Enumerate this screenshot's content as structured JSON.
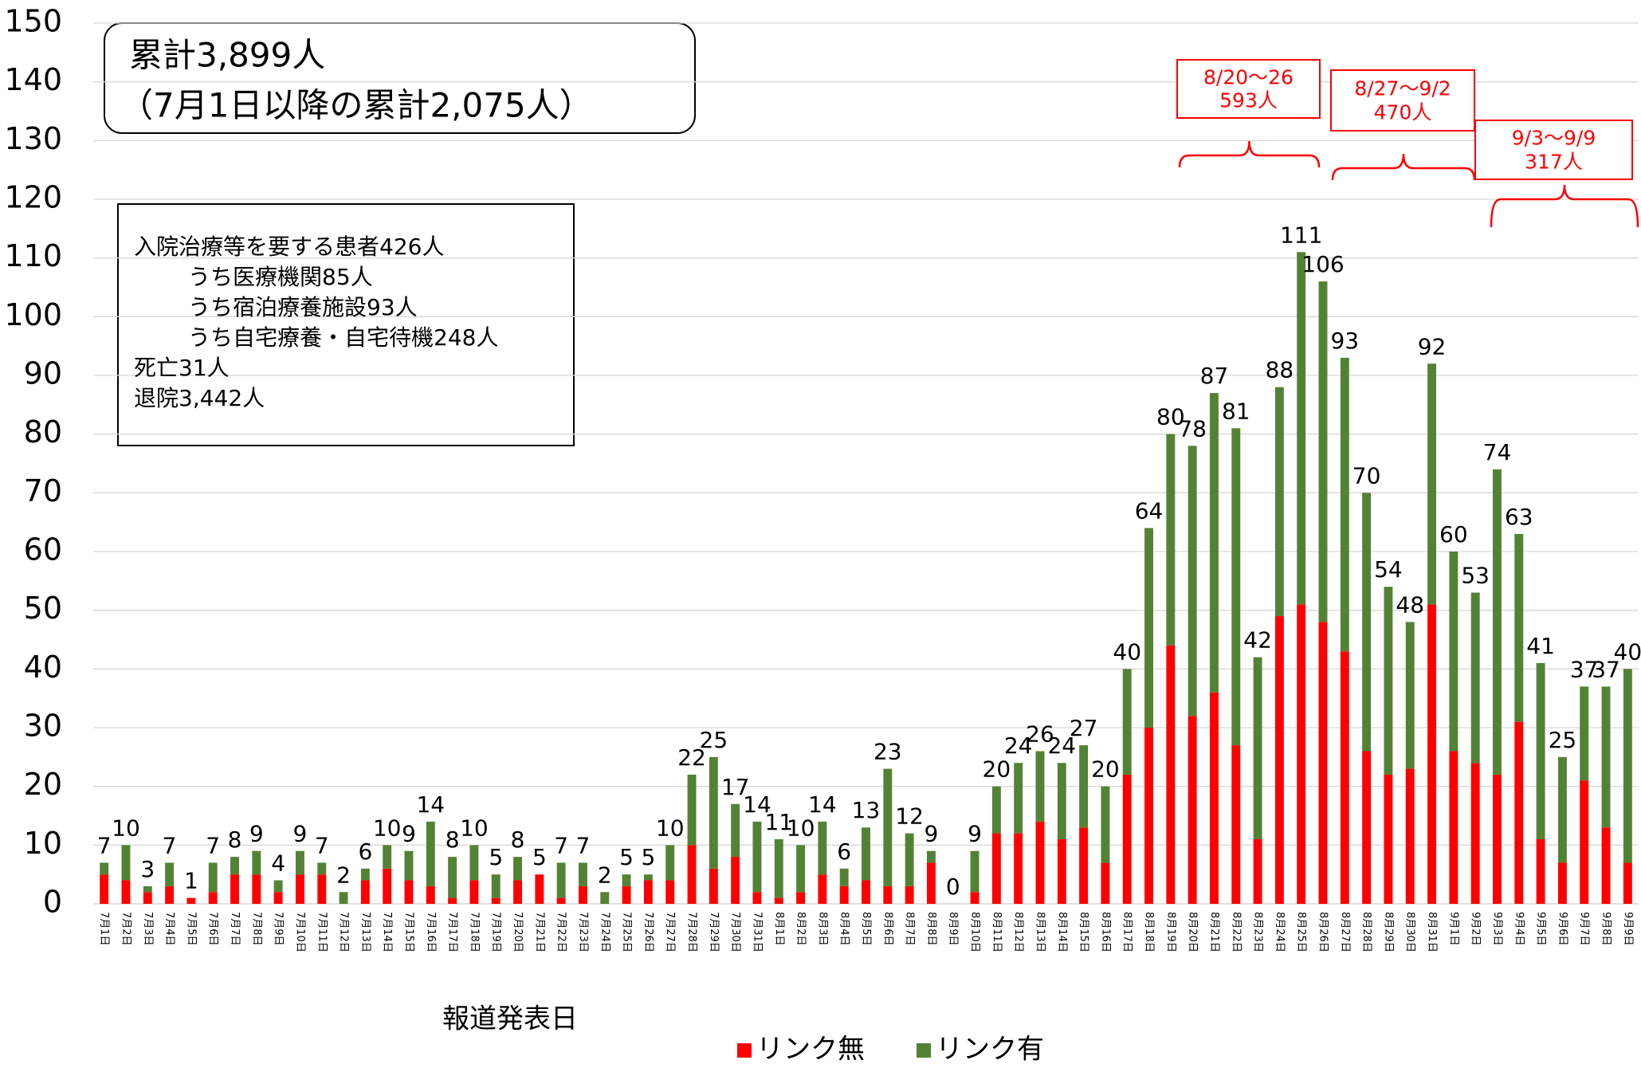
{
  "chart_data": {
    "type": "stacked_bar",
    "categories": [
      "7月1日",
      "7月2日",
      "7月3日",
      "7月4日",
      "7月5日",
      "7月6日",
      "7月7日",
      "7月8日",
      "7月9日",
      "7月10日",
      "7月11日",
      "7月12日",
      "7月13日",
      "7月14日",
      "7月15日",
      "7月16日",
      "7月17日",
      "7月18日",
      "7月19日",
      "7月20日",
      "7月21日",
      "7月22日",
      "7月23日",
      "7月24日",
      "7月25日",
      "7月26日",
      "7月27日",
      "7月28日",
      "7月29日",
      "7月30日",
      "7月31日",
      "8月1日",
      "8月2日",
      "8月3日",
      "8月4日",
      "8月5日",
      "8月6日",
      "8月7日",
      "8月8日",
      "8月9日",
      "8月10日",
      "8月11日",
      "8月12日",
      "8月13日",
      "8月14日",
      "8月15日",
      "8月16日",
      "8月17日",
      "8月18日",
      "8月19日",
      "8月20日",
      "8月21日",
      "8月22日",
      "8月23日",
      "8月24日",
      "8月25日",
      "8月26日",
      "8月27日",
      "8月28日",
      "8月29日",
      "8月30日",
      "8月31日",
      "9月1日",
      "9月2日",
      "9月3日",
      "9月4日",
      "9月5日",
      "9月6日",
      "9月7日",
      "9月8日",
      "9月9日"
    ],
    "series": [
      {
        "name": "リンク無",
        "color": "#ff0000",
        "values": [
          5,
          4,
          2,
          3,
          1,
          2,
          5,
          5,
          2,
          5,
          5,
          0,
          4,
          6,
          4,
          3,
          1,
          4,
          1,
          4,
          5,
          1,
          3,
          0,
          3,
          4,
          4,
          10,
          6,
          8,
          2,
          1,
          2,
          5,
          3,
          4,
          3,
          3,
          7,
          0,
          2,
          12,
          12,
          14,
          11,
          13,
          7,
          22,
          30,
          44,
          32,
          36,
          27,
          11,
          49,
          51,
          48,
          43,
          26,
          22,
          23,
          51,
          26,
          24,
          22,
          31,
          11,
          7,
          21,
          13,
          7
        ]
      },
      {
        "name": "リンク有",
        "color": "#548235",
        "values": [
          2,
          6,
          1,
          4,
          0,
          5,
          3,
          4,
          2,
          4,
          2,
          2,
          2,
          4,
          5,
          11,
          7,
          6,
          4,
          4,
          0,
          6,
          4,
          2,
          2,
          1,
          6,
          12,
          19,
          9,
          12,
          10,
          8,
          9,
          3,
          9,
          20,
          9,
          2,
          0,
          7,
          8,
          12,
          12,
          13,
          14,
          13,
          18,
          34,
          36,
          46,
          51,
          54,
          31,
          39,
          60,
          58,
          50,
          44,
          32,
          25,
          41,
          34,
          29,
          52,
          32,
          30,
          18,
          16,
          24,
          33
        ]
      }
    ],
    "totals": [
      7,
      10,
      3,
      7,
      1,
      7,
      8,
      9,
      4,
      9,
      7,
      2,
      6,
      10,
      9,
      14,
      8,
      10,
      5,
      8,
      5,
      7,
      7,
      2,
      5,
      5,
      10,
      22,
      25,
      17,
      14,
      11,
      10,
      14,
      6,
      13,
      23,
      12,
      9,
      0,
      9,
      20,
      24,
      26,
      24,
      27,
      20,
      40,
      64,
      80,
      78,
      87,
      81,
      42,
      88,
      111,
      106,
      93,
      70,
      54,
      48,
      92,
      60,
      53,
      74,
      63,
      41,
      25,
      37,
      37,
      40
    ],
    "ylim": [
      0,
      150
    ],
    "yticks": [
      0,
      10,
      20,
      30,
      40,
      50,
      60,
      70,
      80,
      90,
      100,
      110,
      120,
      130,
      140,
      150
    ],
    "grid": true,
    "legend": "bottom",
    "x_label": "報道発表日",
    "summary": [
      "累計3,899人",
      "（7月1日以降の累計2,075人）"
    ],
    "status": [
      "入院治療等を要する患者426人",
      "うち医療機関85人",
      "うち宿泊療養施設93人",
      "うち自宅療養・自宅待機248人",
      "死亡31人",
      "退院3,442人"
    ],
    "weekly": [
      {
        "range": "8/20～26",
        "count": "593人"
      },
      {
        "range": "8/27～9/2",
        "count": "470人"
      },
      {
        "range": "9/3～9/9",
        "count": "317人"
      }
    ]
  }
}
